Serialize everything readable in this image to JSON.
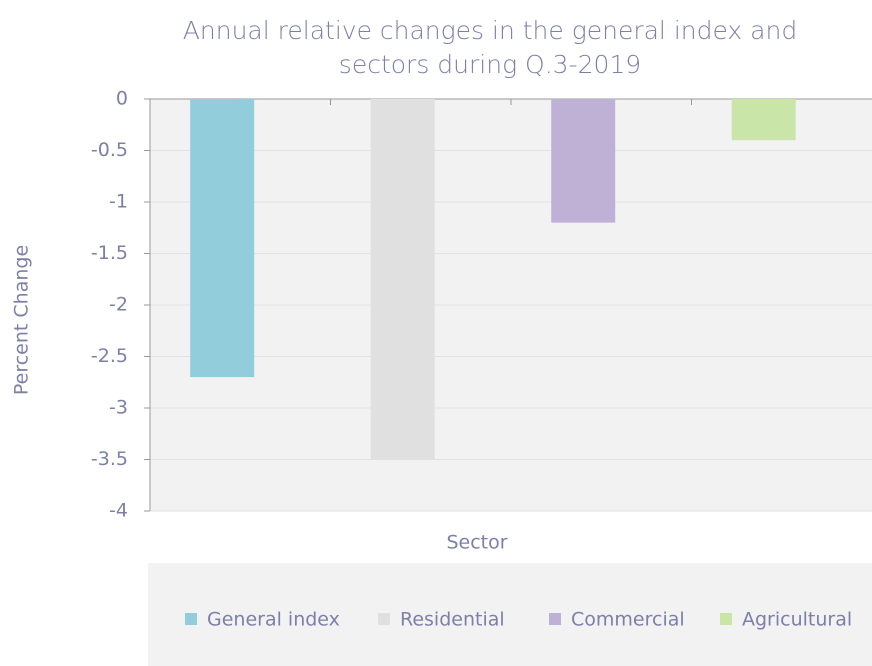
{
  "chart_data": {
    "type": "bar",
    "title": "Annual relative changes in the general index and sectors during Q.3-2019",
    "xlabel": "Sector",
    "ylabel": "Percent Change",
    "categories": [
      null
    ],
    "series": [
      {
        "name": "General index",
        "color": "#92cddc",
        "values": [
          -2.7
        ]
      },
      {
        "name": "Residential",
        "color": "#e0e0e0",
        "values": [
          -3.5
        ]
      },
      {
        "name": "Commercial",
        "color": "#bfb1d5",
        "values": [
          -1.2
        ]
      },
      {
        "name": "Agricultural",
        "color": "#c9e6a8",
        "values": [
          -0.4
        ]
      }
    ],
    "ylim": [
      -4,
      0
    ],
    "yticks": [
      0,
      -0.5,
      -1,
      -1.5,
      -2,
      -2.5,
      -3,
      -3.5,
      -4
    ],
    "grid": true,
    "legend": "bottom"
  }
}
